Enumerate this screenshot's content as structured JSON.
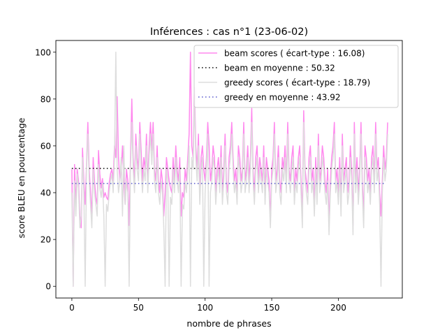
{
  "chart_data": {
    "type": "line",
    "title": "Inférences : cas n°1 (23-06-02)",
    "xlabel": "nombre de phrases",
    "ylabel": "score BLEU en pourcentage",
    "xlim": [
      -12,
      248
    ],
    "ylim": [
      -5,
      105
    ],
    "xticks": [
      0,
      50,
      100,
      150,
      200
    ],
    "yticks": [
      0,
      20,
      40,
      60,
      80,
      100
    ],
    "grid": false,
    "legend_position": "top-right",
    "series": [
      {
        "name": "beam scores ( écart-type : 16.08)",
        "style": "solid",
        "color": "#ff88ee",
        "x_start": 0,
        "values": [
          50,
          0,
          52,
          35,
          50,
          45,
          30,
          25,
          59,
          45,
          35,
          52,
          70,
          50,
          40,
          30,
          55,
          45,
          38,
          35,
          58,
          48,
          42,
          46,
          38,
          40,
          38,
          37,
          44,
          48,
          50,
          45,
          60,
          55,
          81,
          55,
          45,
          50,
          60,
          45,
          35,
          50,
          45,
          26,
          55,
          80,
          55,
          45,
          65,
          55,
          50,
          70,
          58,
          45,
          55,
          50,
          65,
          45,
          60,
          70,
          58,
          70,
          50,
          45,
          60,
          45,
          40,
          50,
          45,
          30,
          40,
          55,
          50,
          45,
          42,
          40,
          55,
          45,
          60,
          50,
          45,
          55,
          30,
          40,
          38,
          50,
          45,
          55,
          65,
          100,
          60,
          55,
          85,
          60,
          50,
          65,
          40,
          55,
          60,
          50,
          45,
          55,
          70,
          60,
          45,
          50,
          60,
          55,
          40,
          50,
          55,
          45,
          60,
          40,
          50,
          65,
          45,
          40,
          55,
          60,
          70,
          55,
          45,
          50,
          40,
          60,
          55,
          45,
          50,
          70,
          45,
          50,
          60,
          45,
          55,
          76,
          50,
          40,
          55,
          60,
          45,
          55,
          50,
          45,
          60,
          40,
          55,
          50,
          45,
          28,
          50,
          55,
          70,
          45,
          50,
          60,
          45,
          40,
          55,
          50,
          60,
          45,
          70,
          50,
          45,
          55,
          60,
          40,
          50,
          45,
          55,
          60,
          45,
          30,
          75,
          50,
          45,
          40,
          55,
          60,
          45,
          50,
          35,
          55,
          40,
          65,
          45,
          50,
          60,
          55,
          45,
          40,
          50,
          26,
          45,
          55,
          60,
          70,
          45,
          50,
          40,
          55,
          35,
          65,
          45,
          50,
          55,
          40,
          45,
          60,
          50,
          26,
          70,
          45,
          55,
          40,
          50,
          70,
          45,
          30,
          60,
          55,
          45,
          50,
          40,
          55,
          60,
          45,
          70,
          50,
          55,
          40,
          30,
          45,
          60,
          50,
          55,
          70
        ]
      },
      {
        "name": "beam en moyenne : 50.32",
        "style": "dotted",
        "color": "#000000",
        "x": [
          0,
          235
        ],
        "values": [
          50.32,
          50.32
        ]
      },
      {
        "name": "greedy scores ( écart-type : 18.79)",
        "style": "solid",
        "color": "#dddddd",
        "x_start": 0,
        "values": [
          40,
          0,
          45,
          30,
          48,
          42,
          25,
          30,
          55,
          40,
          0,
          50,
          65,
          45,
          35,
          25,
          50,
          40,
          35,
          30,
          52,
          42,
          38,
          44,
          30,
          0,
          35,
          32,
          40,
          45,
          48,
          40,
          55,
          100,
          50,
          40,
          45,
          55,
          30,
          60,
          35,
          45,
          40,
          0,
          50,
          70,
          50,
          40,
          60,
          50,
          45,
          65,
          50,
          40,
          50,
          45,
          60,
          40,
          55,
          65,
          52,
          65,
          45,
          40,
          55,
          40,
          35,
          45,
          40,
          25,
          0,
          50,
          45,
          0,
          38,
          35,
          50,
          40,
          55,
          45,
          40,
          50,
          0,
          35,
          33,
          45,
          40,
          50,
          60,
          0,
          55,
          50,
          80,
          55,
          45,
          60,
          35,
          50,
          55,
          0,
          40,
          50,
          65,
          0,
          40,
          45,
          55,
          50,
          35,
          45,
          50,
          40,
          55,
          35,
          45,
          60,
          40,
          35,
          50,
          55,
          65,
          50,
          40,
          45,
          35,
          55,
          50,
          40,
          45,
          65,
          40,
          45,
          55,
          40,
          50,
          70,
          45,
          35,
          50,
          55,
          40,
          50,
          45,
          40,
          55,
          35,
          50,
          45,
          40,
          25,
          45,
          50,
          65,
          40,
          45,
          55,
          40,
          35,
          50,
          45,
          55,
          40,
          65,
          45,
          40,
          50,
          55,
          35,
          45,
          40,
          50,
          55,
          40,
          25,
          70,
          45,
          40,
          35,
          50,
          55,
          40,
          45,
          30,
          50,
          35,
          60,
          40,
          45,
          55,
          50,
          40,
          35,
          45,
          22,
          40,
          50,
          55,
          65,
          40,
          45,
          35,
          50,
          30,
          60,
          40,
          45,
          50,
          35,
          40,
          55,
          45,
          22,
          65,
          40,
          50,
          35,
          45,
          65,
          40,
          25,
          55,
          50,
          40,
          45,
          35,
          50,
          55,
          40,
          65,
          45,
          50,
          35,
          0,
          40,
          55,
          45,
          50,
          65
        ]
      },
      {
        "name": "greedy en moyenne : 43.92",
        "style": "dotted",
        "color": "#5555cc",
        "x": [
          0,
          235
        ],
        "values": [
          43.92,
          43.92
        ]
      }
    ]
  }
}
